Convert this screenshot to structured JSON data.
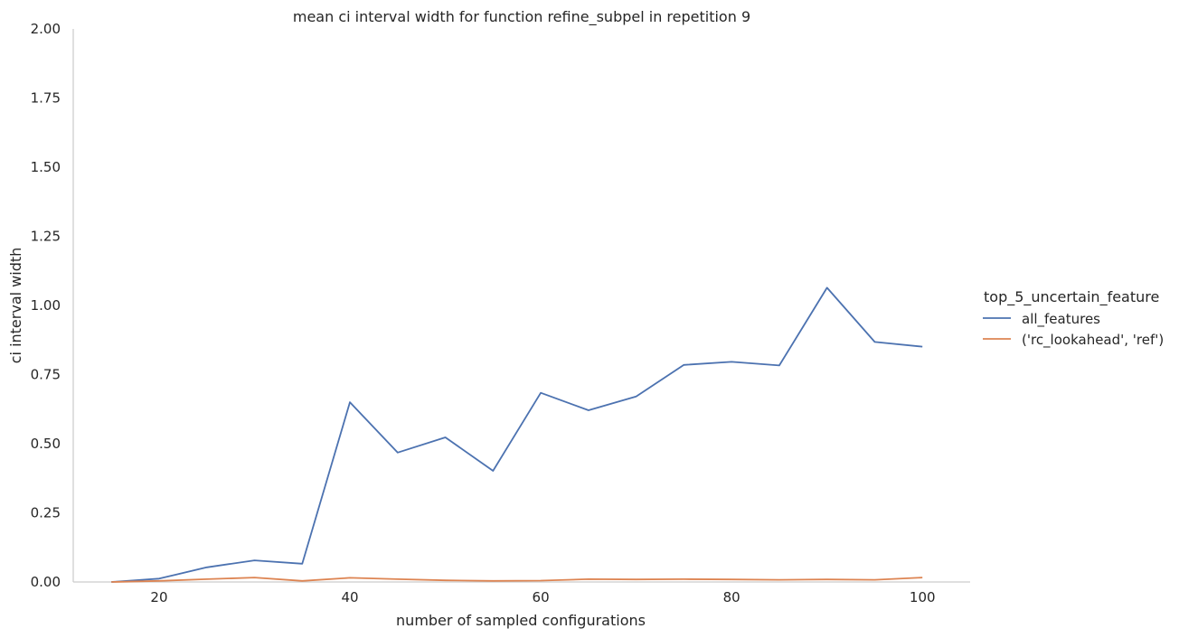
{
  "chart_data": {
    "type": "line",
    "title": "mean ci interval width for function refine_subpel in repetition 9",
    "xlabel": "number of sampled configurations",
    "ylabel": "ci interval width",
    "xlim": [
      11,
      105
    ],
    "ylim": [
      0,
      2
    ],
    "xticks": [
      20,
      40,
      60,
      80,
      100
    ],
    "yticks": [
      0.0,
      0.25,
      0.5,
      0.75,
      1.0,
      1.25,
      1.5,
      1.75,
      2.0
    ],
    "ytick_labels": [
      "0.00",
      "0.25",
      "0.50",
      "0.75",
      "1.00",
      "1.25",
      "1.50",
      "1.75",
      "2.00"
    ],
    "xtick_labels": [
      "20",
      "40",
      "60",
      "80",
      "100"
    ],
    "grid": false,
    "legend": {
      "title": "top_5_uncertain_feature",
      "placement": "right"
    },
    "x": [
      15,
      20,
      25,
      30,
      35,
      40,
      45,
      50,
      55,
      60,
      65,
      70,
      75,
      80,
      85,
      90,
      95,
      100
    ],
    "series": [
      {
        "name": "all_features",
        "color": "#4c72b0",
        "values": [
          0.0,
          0.012,
          0.053,
          0.078,
          0.066,
          0.65,
          0.468,
          0.523,
          0.402,
          0.684,
          0.621,
          0.671,
          0.785,
          0.796,
          0.783,
          1.064,
          0.868,
          0.851
        ]
      },
      {
        "name": "('rc_lookahead', 'ref')",
        "color": "#dd8452",
        "values": [
          0.0,
          0.004,
          0.01,
          0.016,
          0.004,
          0.015,
          0.01,
          0.006,
          0.004,
          0.005,
          0.01,
          0.009,
          0.01,
          0.009,
          0.008,
          0.009,
          0.008,
          0.016
        ]
      }
    ]
  }
}
